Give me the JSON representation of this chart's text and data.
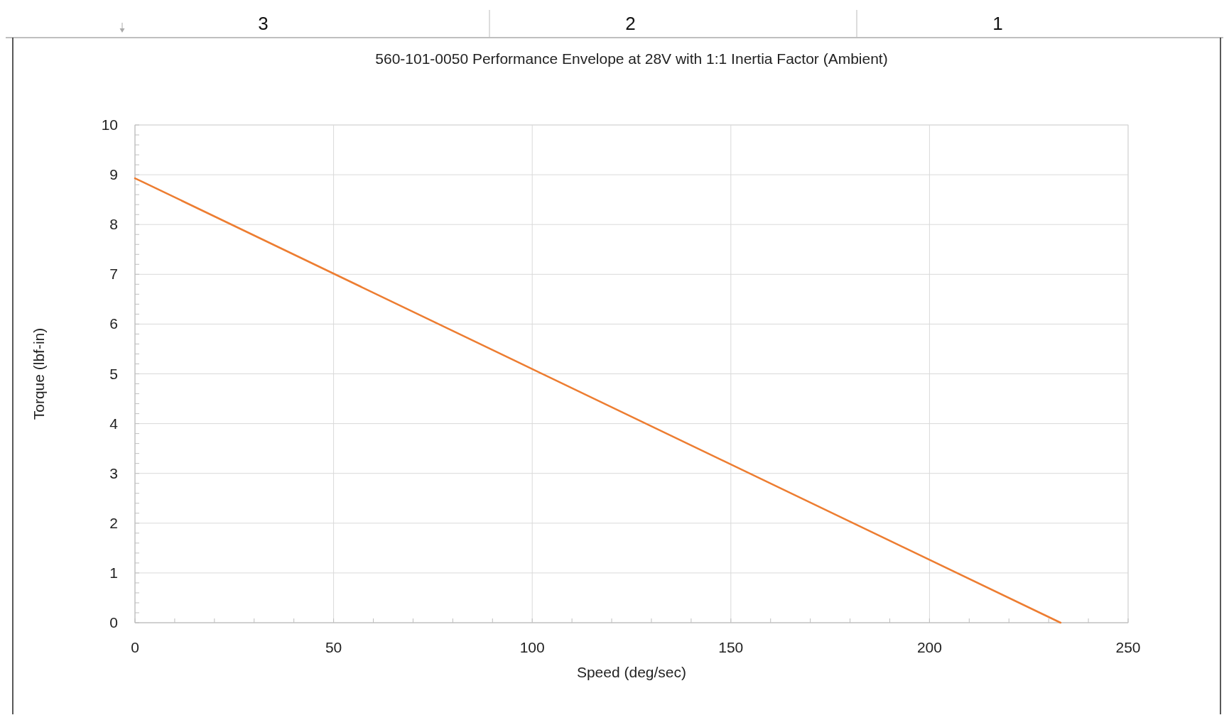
{
  "chart_data": {
    "type": "line",
    "title": "560-101-0050 Performance Envelope at 28V with 1:1 Inertia Factor (Ambient)",
    "xlabel": "Speed (deg/sec)",
    "ylabel": "Torque (lbf-in)",
    "annotations": [
      "3",
      "2",
      "1"
    ],
    "x": [
      0,
      233
    ],
    "series": [
      {
        "color": "#ed7d31",
        "values": [
          8.93,
          0
        ]
      }
    ],
    "xlim": [
      0,
      250
    ],
    "ylim": [
      0,
      10
    ],
    "xticks": [
      0,
      {
        "value": 10,
        "label": null
      },
      {
        "value": 20,
        "label": null
      },
      {
        "value": 30,
        "label": null
      },
      {
        "value": 40,
        "label": null
      },
      50,
      {
        "value": 60,
        "label": null
      },
      {
        "value": 70,
        "label": null
      },
      {
        "value": 80,
        "label": null
      },
      {
        "value": 90,
        "label": null
      },
      100,
      {
        "value": 110,
        "label": null
      },
      {
        "value": 120,
        "label": null
      },
      {
        "value": 130,
        "label": null
      },
      {
        "value": 140,
        "label": null
      },
      150,
      {
        "value": 160,
        "label": null
      },
      {
        "value": 170,
        "label": null
      },
      {
        "value": 180,
        "label": null
      },
      {
        "value": 190,
        "label": null
      },
      200,
      {
        "value": 210,
        "label": null
      },
      {
        "value": 220,
        "label": null
      },
      {
        "value": 230,
        "label": null
      },
      {
        "value": 240,
        "label": null
      },
      250
    ],
    "yticks": [
      0,
      {
        "value": 0.2,
        "label": null
      },
      {
        "value": 0.4,
        "label": null
      },
      {
        "value": 0.6,
        "label": null
      },
      {
        "value": 0.8,
        "label": null
      },
      1,
      {
        "value": 1.2,
        "label": null
      },
      {
        "value": 1.4,
        "label": null
      },
      {
        "value": 1.6,
        "label": null
      },
      {
        "value": 1.8,
        "label": null
      },
      2,
      {
        "value": 2.2,
        "label": null
      },
      {
        "value": 2.4,
        "label": null
      },
      {
        "value": 2.6,
        "label": null
      },
      {
        "value": 2.8,
        "label": null
      },
      3,
      {
        "value": 3.2,
        "label": null
      },
      {
        "value": 3.4,
        "label": null
      },
      {
        "value": 3.6,
        "label": null
      },
      {
        "value": 3.8,
        "label": null
      },
      4,
      {
        "value": 4.2,
        "label": null
      },
      {
        "value": 4.4,
        "label": null
      },
      {
        "value": 4.6,
        "label": null
      },
      {
        "value": 4.8,
        "label": null
      },
      5,
      {
        "value": 5.2,
        "label": null
      },
      {
        "value": 5.4,
        "label": null
      },
      {
        "value": 5.6,
        "label": null
      },
      {
        "value": 5.8,
        "label": null
      },
      6,
      {
        "value": 6.2,
        "label": null
      },
      {
        "value": 6.4,
        "label": null
      },
      {
        "value": 6.6,
        "label": null
      },
      {
        "value": 6.8,
        "label": null
      },
      7,
      {
        "value": 7.2,
        "label": null
      },
      {
        "value": 7.4,
        "label": null
      },
      {
        "value": 7.6,
        "label": null
      },
      {
        "value": 7.8,
        "label": null
      },
      8,
      {
        "value": 8.2,
        "label": null
      },
      {
        "value": 8.4,
        "label": null
      },
      {
        "value": 8.6,
        "label": null
      },
      {
        "value": 8.8,
        "label": null
      },
      9,
      {
        "value": 9.2,
        "label": null
      },
      {
        "value": 9.4,
        "label": null
      },
      {
        "value": 9.6,
        "label": null
      },
      {
        "value": 9.8,
        "label": null
      },
      10
    ],
    "grid": true,
    "line_style": "solid",
    "marker": "none"
  }
}
